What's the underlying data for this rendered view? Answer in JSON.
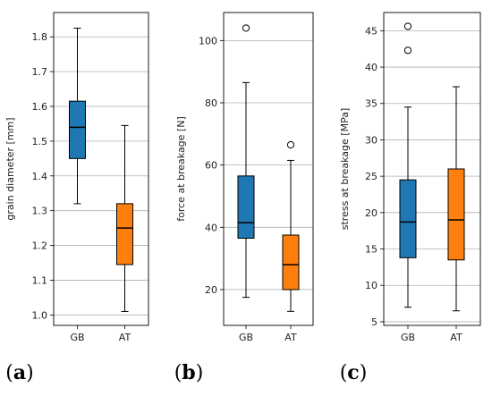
{
  "chart_data": [
    {
      "type": "box",
      "panel_label": "a",
      "categories": [
        "GB",
        "AT"
      ],
      "ylabel": "grain diameter [mm]",
      "ylim": [
        0.97,
        1.87
      ],
      "yticks": [
        "1.0",
        "1.1",
        "1.2",
        "1.3",
        "1.4",
        "1.5",
        "1.6",
        "1.7",
        "1.8"
      ],
      "grid": "horizontal",
      "boxes": [
        {
          "name": "GB",
          "whisker_low": 1.32,
          "q1": 1.45,
          "median": 1.54,
          "q3": 1.615,
          "whisker_high": 1.825,
          "outliers": [],
          "color": "#1f77b4"
        },
        {
          "name": "AT",
          "whisker_low": 1.01,
          "q1": 1.145,
          "median": 1.25,
          "q3": 1.32,
          "whisker_high": 1.545,
          "outliers": [],
          "color": "#ff7f0e"
        }
      ]
    },
    {
      "type": "box",
      "panel_label": "b",
      "categories": [
        "GB",
        "AT"
      ],
      "ylabel": "force at breakage [N]",
      "ylim": [
        8.5,
        109
      ],
      "yticks": [
        "20",
        "40",
        "60",
        "80",
        "100"
      ],
      "grid": "horizontal",
      "boxes": [
        {
          "name": "GB",
          "whisker_low": 17.5,
          "q1": 36.5,
          "median": 41.5,
          "q3": 56.5,
          "whisker_high": 86.5,
          "outliers": [
            104
          ],
          "color": "#1f77b4"
        },
        {
          "name": "AT",
          "whisker_low": 13,
          "q1": 20,
          "median": 28,
          "q3": 37.5,
          "whisker_high": 61.5,
          "outliers": [
            66.5
          ],
          "color": "#ff7f0e"
        }
      ]
    },
    {
      "type": "box",
      "panel_label": "c",
      "categories": [
        "GB",
        "AT"
      ],
      "ylabel": "stress at breakage [MPa]",
      "ylim": [
        4.5,
        47.5
      ],
      "yticks": [
        "5",
        "10",
        "15",
        "20",
        "25",
        "30",
        "35",
        "40",
        "45"
      ],
      "grid": "horizontal",
      "boxes": [
        {
          "name": "GB",
          "whisker_low": 7,
          "q1": 13.8,
          "median": 18.7,
          "q3": 24.5,
          "whisker_high": 34.5,
          "outliers": [
            42.3,
            45.6
          ],
          "color": "#1f77b4"
        },
        {
          "name": "AT",
          "whisker_low": 6.5,
          "q1": 13.5,
          "median": 19,
          "q3": 26,
          "whisker_high": 37.3,
          "outliers": [],
          "color": "#ff7f0e"
        }
      ]
    }
  ]
}
